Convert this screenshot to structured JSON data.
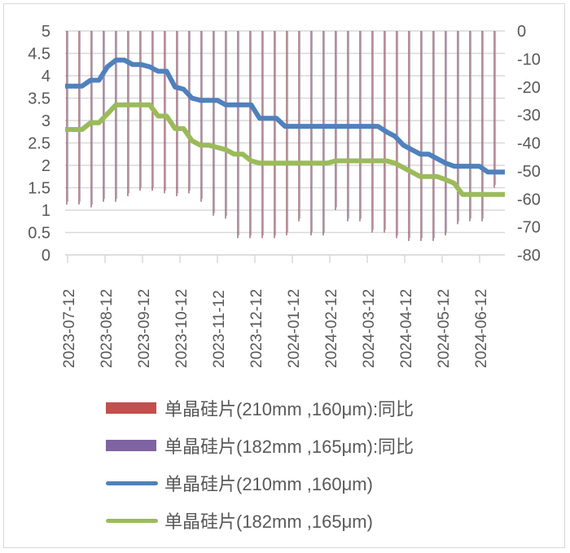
{
  "chart_data": {
    "type": "bar+line",
    "title": "",
    "x_tick_labels": [
      "2023-07-12",
      "2023-08-12",
      "2023-09-12",
      "2023-10-12",
      "2023-11-12",
      "2023-12-12",
      "2024-01-12",
      "2024-02-12",
      "2024-03-12",
      "2024-04-12",
      "2024-05-12",
      "2024-06-12"
    ],
    "left_axis": {
      "ticks": [
        "0",
        "0.5",
        "1",
        "1.5",
        "2",
        "2.5",
        "3",
        "3.5",
        "4",
        "4.5",
        "5"
      ],
      "ylim": [
        0,
        5
      ]
    },
    "right_axis": {
      "ticks": [
        "-80",
        "-70",
        "-60",
        "-50",
        "-40",
        "-30",
        "-20",
        "-10",
        "0"
      ],
      "ylim": [
        -80,
        0
      ]
    },
    "grid": true,
    "legend_position": "bottom",
    "series": [
      {
        "name": "单晶硅片(210mm ,160μm):同比",
        "type": "bar",
        "axis": "right",
        "color": "#c0504d",
        "values": [
          -62,
          -62,
          -63,
          -61,
          -61,
          -59,
          -57,
          -57,
          -58,
          -59,
          -58,
          -61,
          -66,
          -67,
          -74,
          -74,
          -74,
          -74,
          -73,
          -68,
          -73,
          -73,
          -64,
          -68,
          -68,
          -72,
          -72,
          -74,
          -75,
          -75,
          -75,
          -73,
          -69,
          -68,
          -68,
          -56
        ]
      },
      {
        "name": "单晶硅片(182mm ,165μm):同比",
        "type": "bar",
        "axis": "right",
        "color": "#8064a2",
        "values": [
          -61,
          -61,
          -62,
          -60,
          -60,
          -58,
          -56,
          -56,
          -57,
          -58,
          -57,
          -60,
          -65,
          -66,
          -73,
          -73,
          -73,
          -73,
          -72,
          -67,
          -72,
          -72,
          -63,
          -67,
          -67,
          -71,
          -71,
          -73,
          -74,
          -74,
          -74,
          -72,
          -68,
          -67,
          -67,
          -55
        ]
      },
      {
        "name": "单晶硅片(210mm ,160μm)",
        "type": "line",
        "axis": "left",
        "color": "#4f81bd",
        "values": [
          3.77,
          3.77,
          3.77,
          3.9,
          3.9,
          4.2,
          4.35,
          4.35,
          4.25,
          4.25,
          4.2,
          4.1,
          4.1,
          3.75,
          3.7,
          3.5,
          3.45,
          3.45,
          3.45,
          3.35,
          3.35,
          3.35,
          3.35,
          3.05,
          3.05,
          3.05,
          2.87,
          2.87,
          2.87,
          2.87,
          2.87,
          2.87,
          2.87,
          2.87,
          2.87,
          2.87,
          2.87,
          2.87,
          2.75,
          2.65,
          2.45,
          2.35,
          2.25,
          2.25,
          2.15,
          2.05,
          1.98,
          1.98,
          1.98,
          1.98,
          1.85,
          1.85,
          1.85
        ]
      },
      {
        "name": "单晶硅片(182mm ,165μm)",
        "type": "line",
        "axis": "left",
        "color": "#9bbb59",
        "values": [
          2.8,
          2.8,
          2.8,
          2.95,
          2.95,
          3.15,
          3.35,
          3.35,
          3.35,
          3.35,
          3.35,
          3.1,
          3.1,
          2.82,
          2.82,
          2.55,
          2.45,
          2.45,
          2.4,
          2.35,
          2.25,
          2.25,
          2.1,
          2.05,
          2.05,
          2.05,
          2.05,
          2.05,
          2.05,
          2.05,
          2.05,
          2.05,
          2.1,
          2.1,
          2.1,
          2.1,
          2.1,
          2.1,
          2.1,
          2.05,
          1.95,
          1.85,
          1.75,
          1.75,
          1.75,
          1.68,
          1.6,
          1.35,
          1.35,
          1.35,
          1.35,
          1.35,
          1.35
        ]
      }
    ]
  },
  "legend": {
    "items": [
      {
        "label": "单晶硅片(210mm ,160μm):同比",
        "color": "#c0504d",
        "kind": "bar"
      },
      {
        "label": "单晶硅片(182mm ,165μm):同比",
        "color": "#8064a2",
        "kind": "bar"
      },
      {
        "label": "单晶硅片(210mm ,160μm)",
        "color": "#4f81bd",
        "kind": "line"
      },
      {
        "label": "单晶硅片(182mm ,165μm)",
        "color": "#9bbb59",
        "kind": "line"
      }
    ]
  }
}
